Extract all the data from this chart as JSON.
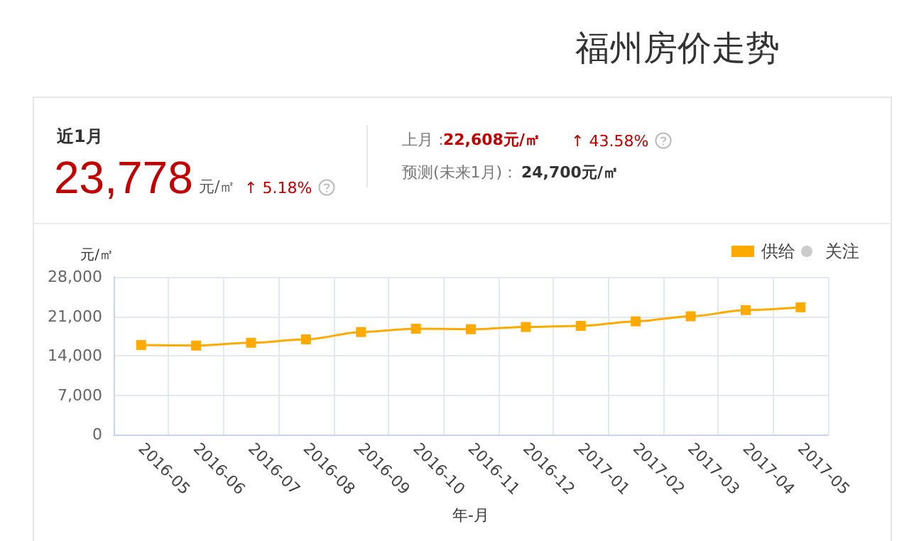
{
  "chart_data": {
    "type": "line",
    "title": "福州房价走势",
    "annotations": [
      "近1月",
      "23,778",
      "元/㎡",
      "↑ 5.18%",
      "上月：",
      "22,608元/㎡",
      "↑ 43.58%",
      "预测(未来1月)：",
      "24,700元/㎡"
    ],
    "categories": [
      "2016-05",
      "2016-06",
      "2016-07",
      "2016-08",
      "2016-09",
      "2016-10",
      "2016-11",
      "2016-12",
      "2017-01",
      "2017-02",
      "2017-03",
      "2017-04",
      "2017-05"
    ],
    "series": [
      {
        "name": "供给",
        "color": "#ffaa00",
        "marker": "square",
        "values": [
          15900,
          15800,
          16300,
          16900,
          18200,
          18800,
          18700,
          19100,
          19300,
          20100,
          21000,
          22100,
          22600
        ]
      },
      {
        "name": "关注",
        "color": "#cccccc",
        "marker": "circle",
        "values": [
          null,
          null,
          null,
          null,
          null,
          null,
          null,
          null,
          null,
          null,
          null,
          null,
          null
        ]
      }
    ],
    "xlabel": "年-月",
    "ylabel": "元/㎡",
    "ylim": [
      0,
      28000
    ],
    "yticks": [
      0,
      {
        "value": 7000,
        "label": "7,000"
      },
      {
        "value": 14000,
        "label": "14,000"
      },
      {
        "value": 21000,
        "label": "21,000"
      },
      {
        "value": 28000,
        "label": "28,000"
      }
    ],
    "grid": true,
    "legend": "top right"
  }
}
